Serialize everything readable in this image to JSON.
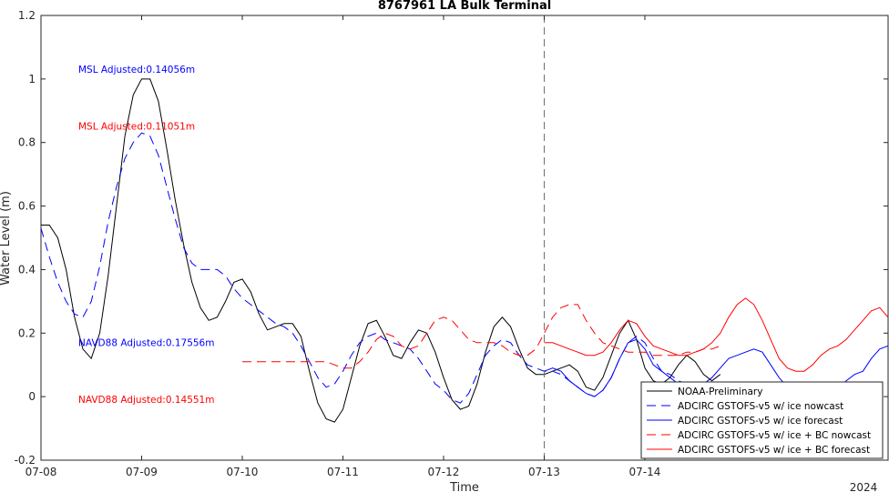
{
  "chart_data": {
    "type": "line",
    "title": "8767961 LA Bulk Terminal",
    "xlabel": "Time",
    "ylabel": "Water Level (m)",
    "year_label": "2024",
    "xlim": [
      "07-08",
      "07-14 18:00"
    ],
    "ylim": [
      -0.2,
      1.2
    ],
    "x_ticks": [
      "07-08",
      "07-09",
      "07-10",
      "07-11",
      "07-12",
      "07-13",
      "07-14"
    ],
    "y_ticks": [
      "-0.2",
      "0",
      "0.2",
      "0.4",
      "0.6",
      "0.8",
      "1",
      "1.2"
    ],
    "grid": false,
    "legend_position": "bottom-right",
    "vertical_marker": "07-13",
    "x_unit": "hours after 07-08 00:00",
    "annotations": [
      {
        "text": "MSL Adjusted:0.14056m",
        "color": "#0000ff",
        "y": 1.02
      },
      {
        "text": "MSL Adjusted:0.11051m",
        "color": "#ff0000",
        "y": 0.84
      },
      {
        "text": "NAVD88 Adjusted:0.17556m",
        "color": "#0000ff",
        "y": 0.16
      },
      {
        "text": "NAVD88 Adjusted:0.14551m",
        "color": "#ff0000",
        "y": -0.02
      }
    ],
    "series": [
      {
        "name": "NOAA-Preliminary",
        "color": "#000000",
        "dash": "solid",
        "x": [
          0,
          2,
          4,
          6,
          8,
          10,
          12,
          14,
          16,
          18,
          20,
          22,
          24,
          26,
          28,
          30,
          32,
          34,
          36,
          38,
          40,
          42,
          44,
          46,
          48,
          50,
          52,
          54,
          56,
          58,
          60,
          62,
          64,
          66,
          68,
          70,
          72,
          74,
          76,
          78,
          80,
          82,
          84,
          86,
          88,
          90,
          92,
          94,
          96,
          98,
          100,
          102,
          104,
          106,
          108,
          110,
          112,
          114,
          116,
          118,
          120,
          122,
          124,
          126,
          128,
          130,
          132,
          134,
          136,
          138,
          140,
          142,
          144,
          146,
          148,
          150,
          152,
          154,
          156,
          158,
          160,
          162
        ],
        "y": [
          0.54,
          0.54,
          0.5,
          0.4,
          0.25,
          0.15,
          0.12,
          0.2,
          0.38,
          0.6,
          0.82,
          0.95,
          1.0,
          1.0,
          0.93,
          0.78,
          0.62,
          0.48,
          0.36,
          0.28,
          0.24,
          0.25,
          0.3,
          0.36,
          0.37,
          0.33,
          0.26,
          0.21,
          0.22,
          0.23,
          0.23,
          0.19,
          0.08,
          -0.02,
          -0.07,
          -0.08,
          -0.04,
          0.06,
          0.16,
          0.23,
          0.24,
          0.19,
          0.13,
          0.12,
          0.17,
          0.21,
          0.2,
          0.14,
          0.06,
          -0.01,
          -0.04,
          -0.03,
          0.04,
          0.14,
          0.22,
          0.25,
          0.22,
          0.15,
          0.09,
          0.07,
          0.07,
          0.08,
          0.09,
          0.1,
          0.08,
          0.03,
          0.02,
          0.06,
          0.13,
          0.2,
          0.24,
          0.18,
          0.09,
          0.05,
          0.04,
          0.06,
          0.1,
          0.13,
          0.11,
          0.07,
          0.05,
          0.07
        ]
      },
      {
        "name": "ADCIRC GSTOFS-v5 w/ ice nowcast",
        "color": "#0000ff",
        "dash": "10,6",
        "x": [
          0,
          2,
          4,
          6,
          8,
          10,
          12,
          14,
          16,
          18,
          20,
          22,
          24,
          26,
          28,
          30,
          32,
          34,
          36,
          38,
          40,
          42,
          44,
          46,
          48,
          50,
          52,
          54,
          56,
          58,
          60,
          62,
          64,
          66,
          68,
          70,
          72,
          74,
          76,
          78,
          80,
          82,
          84,
          86,
          88,
          90,
          92,
          94,
          96,
          98,
          100,
          102,
          104,
          106,
          108,
          110,
          112,
          114,
          116,
          118,
          120,
          122,
          124,
          126,
          128,
          130,
          132,
          134,
          136,
          138,
          140,
          142,
          144,
          146,
          148,
          150,
          152,
          154,
          156,
          158,
          160,
          162
        ],
        "y": [
          0.53,
          0.44,
          0.36,
          0.3,
          0.26,
          0.25,
          0.3,
          0.41,
          0.55,
          0.66,
          0.75,
          0.8,
          0.83,
          0.82,
          0.76,
          0.66,
          0.56,
          0.47,
          0.42,
          0.4,
          0.4,
          0.4,
          0.38,
          0.34,
          0.31,
          0.29,
          0.27,
          0.25,
          0.23,
          0.22,
          0.2,
          0.16,
          0.11,
          0.06,
          0.03,
          0.04,
          0.08,
          0.13,
          0.17,
          0.19,
          0.2,
          0.18,
          0.17,
          0.16,
          0.15,
          0.12,
          0.08,
          0.04,
          0.02,
          -0.01,
          -0.02,
          0.01,
          0.07,
          0.13,
          0.16,
          0.18,
          0.17,
          0.13,
          0.1,
          0.09,
          0.08,
          0.08,
          0.07,
          0.05,
          0.03,
          0.01,
          0.0,
          0.02,
          0.06,
          0.12,
          0.17,
          0.19,
          0.17,
          0.12,
          0.08,
          0.07,
          0.05,
          0.04,
          0.03,
          0.03,
          0.04,
          0.05
        ]
      },
      {
        "name": "ADCIRC GSTOFS-v5 w/ ice forecast",
        "color": "#0000ff",
        "dash": "solid",
        "x": [
          120,
          122,
          124,
          126,
          128,
          130,
          132,
          134,
          136,
          138,
          140,
          142,
          144,
          146,
          148,
          150,
          152,
          154,
          156,
          158,
          160,
          162,
          164,
          166,
          168,
          170,
          172,
          174,
          176,
          178,
          180,
          182,
          184,
          186,
          188,
          190,
          192,
          194,
          196,
          198,
          200,
          202
        ],
        "y": [
          0.08,
          0.09,
          0.08,
          0.05,
          0.03,
          0.01,
          0.0,
          0.02,
          0.06,
          0.12,
          0.17,
          0.18,
          0.15,
          0.1,
          0.08,
          0.06,
          0.04,
          0.03,
          0.03,
          0.04,
          0.06,
          0.09,
          0.12,
          0.13,
          0.14,
          0.15,
          0.14,
          0.1,
          0.06,
          0.03,
          0.02,
          0.02,
          0.01,
          0.01,
          0.01,
          0.02,
          0.05,
          0.07,
          0.08,
          0.12,
          0.15,
          0.16
        ]
      },
      {
        "name": "ADCIRC GSTOFS-v5 w/ ice + BC nowcast",
        "color": "#ff0000",
        "dash": "10,6",
        "x": [
          48,
          50,
          52,
          54,
          56,
          58,
          60,
          62,
          64,
          66,
          68,
          70,
          72,
          74,
          76,
          78,
          80,
          82,
          84,
          86,
          88,
          90,
          92,
          94,
          96,
          98,
          100,
          102,
          104,
          106,
          108,
          110,
          112,
          114,
          116,
          118,
          120,
          122,
          124,
          126,
          128,
          130,
          132,
          134,
          136,
          138,
          140,
          142,
          144,
          146,
          148,
          150,
          152,
          154,
          156,
          158,
          160,
          162
        ],
        "y": [
          0.11,
          0.11,
          0.11,
          0.11,
          0.11,
          0.11,
          0.11,
          0.11,
          0.11,
          0.11,
          0.11,
          0.1,
          0.09,
          0.09,
          0.11,
          0.14,
          0.18,
          0.2,
          0.19,
          0.16,
          0.15,
          0.16,
          0.2,
          0.24,
          0.25,
          0.24,
          0.21,
          0.18,
          0.17,
          0.17,
          0.17,
          0.16,
          0.14,
          0.13,
          0.13,
          0.15,
          0.2,
          0.25,
          0.28,
          0.29,
          0.29,
          0.24,
          0.2,
          0.17,
          0.16,
          0.15,
          0.14,
          0.14,
          0.14,
          0.13,
          0.13,
          0.13,
          0.13,
          0.14,
          0.14,
          0.15,
          0.15,
          0.16
        ]
      },
      {
        "name": "ADCIRC GSTOFS-v5 w/ ice + BC forecast",
        "color": "#ff0000",
        "dash": "solid",
        "x": [
          120,
          122,
          124,
          126,
          128,
          130,
          132,
          134,
          136,
          138,
          140,
          142,
          144,
          146,
          148,
          150,
          152,
          154,
          156,
          158,
          160,
          162,
          164,
          166,
          168,
          170,
          172,
          174,
          176,
          178,
          180,
          182,
          184,
          186,
          188,
          190,
          192,
          194,
          196,
          198,
          200,
          202
        ],
        "y": [
          0.17,
          0.17,
          0.16,
          0.15,
          0.14,
          0.13,
          0.13,
          0.14,
          0.17,
          0.21,
          0.24,
          0.23,
          0.19,
          0.16,
          0.15,
          0.14,
          0.13,
          0.13,
          0.14,
          0.15,
          0.17,
          0.2,
          0.25,
          0.29,
          0.31,
          0.29,
          0.24,
          0.18,
          0.12,
          0.09,
          0.08,
          0.08,
          0.1,
          0.13,
          0.15,
          0.16,
          0.18,
          0.21,
          0.24,
          0.27,
          0.28,
          0.25
        ]
      }
    ]
  }
}
